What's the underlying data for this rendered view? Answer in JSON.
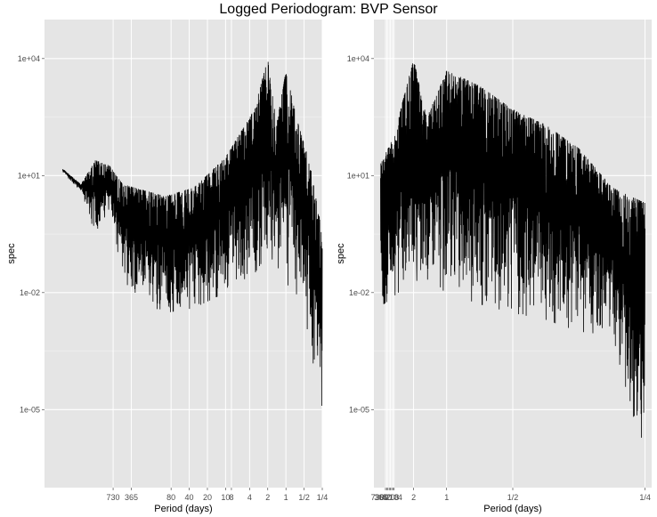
{
  "title": "Logged Periodogram: BVP Sensor",
  "colors": {
    "panel_bg": "#e5e5e5",
    "grid_major": "#ffffff",
    "line": "#000000",
    "tick_text": "#4d4d4d"
  },
  "chart_data": [
    {
      "type": "line",
      "xlabel": "Period (days)",
      "ylabel": "spec",
      "y_scale": "log10",
      "ylim": [
        1e-07,
        100000.0
      ],
      "x_scale": "log frequency (cycles per day)",
      "xlim_frequency": [
        0.0001,
        4
      ],
      "x_ticks": [
        {
          "label": "730",
          "frequency": 0.00137
        },
        {
          "label": "365",
          "frequency": 0.00274
        },
        {
          "label": "80",
          "frequency": 0.0125
        },
        {
          "label": "40",
          "frequency": 0.025
        },
        {
          "label": "20",
          "frequency": 0.05
        },
        {
          "label": "10",
          "frequency": 0.1
        },
        {
          "label": "8",
          "frequency": 0.125
        },
        {
          "label": "4",
          "frequency": 0.25
        },
        {
          "label": "2",
          "frequency": 0.5
        },
        {
          "label": "1",
          "frequency": 1
        },
        {
          "label": "1/2",
          "frequency": 2
        },
        {
          "label": "1/4",
          "frequency": 4
        }
      ],
      "y_ticks": [
        {
          "label": "1e-05",
          "value": 1e-05
        },
        {
          "label": "1e-02",
          "value": 0.01
        },
        {
          "label": "1e+01",
          "value": 10
        },
        {
          "label": "1e+04",
          "value": 10000
        }
      ],
      "envelope": [
        {
          "freq": 0.0002,
          "lo": 12,
          "hi": 15
        },
        {
          "freq": 0.0004,
          "lo": 4,
          "hi": 6
        },
        {
          "freq": 0.0007,
          "lo": 0.3,
          "hi": 25
        },
        {
          "freq": 0.0012,
          "lo": 1.5,
          "hi": 18
        },
        {
          "freq": 0.002,
          "lo": 0.02,
          "hi": 6
        },
        {
          "freq": 0.005,
          "lo": 0.005,
          "hi": 4
        },
        {
          "freq": 0.01,
          "lo": 0.003,
          "hi": 3
        },
        {
          "freq": 0.03,
          "lo": 0.004,
          "hi": 5
        },
        {
          "freq": 0.1,
          "lo": 0.01,
          "hi": 30
        },
        {
          "freq": 0.3,
          "lo": 0.03,
          "hi": 500
        },
        {
          "freq": 0.5,
          "lo": 0.1,
          "hi": 10000
        },
        {
          "freq": 0.7,
          "lo": 0.05,
          "hi": 200
        },
        {
          "freq": 1.0,
          "lo": 0.02,
          "hi": 5000
        },
        {
          "freq": 1.5,
          "lo": 0.005,
          "hi": 300
        },
        {
          "freq": 2.5,
          "lo": 0.0005,
          "hi": 20
        },
        {
          "freq": 3.5,
          "lo": 2e-05,
          "hi": 1
        },
        {
          "freq": 4.0,
          "lo": 5e-07,
          "hi": 0.5
        }
      ]
    },
    {
      "type": "line",
      "xlabel": "Period (days)",
      "ylabel": "spec",
      "y_scale": "log10",
      "ylim": [
        1e-07,
        100000.0
      ],
      "x_scale": "linear frequency (cycles per day)",
      "xlim_frequency": [
        -0.1,
        4.1
      ],
      "x_ticks": [
        {
          "label": "2",
          "frequency": 0.5
        },
        {
          "label": "1",
          "frequency": 1
        },
        {
          "label": "1/2",
          "frequency": 2
        },
        {
          "label": "1/4",
          "frequency": 4
        }
      ],
      "x_ticks_overlapping": [
        "730",
        "365",
        "80",
        "40",
        "20",
        "10",
        "8",
        "4"
      ],
      "y_ticks": [
        {
          "label": "1e-05",
          "value": 1e-05
        },
        {
          "label": "1e-02",
          "value": 0.01
        },
        {
          "label": "1e+01",
          "value": 10
        },
        {
          "label": "1e+04",
          "value": 10000
        }
      ],
      "envelope": [
        {
          "freq": 0.0,
          "lo": 0.01,
          "hi": 20
        },
        {
          "freq": 0.05,
          "lo": 0.005,
          "hi": 30
        },
        {
          "freq": 0.2,
          "lo": 0.008,
          "hi": 100
        },
        {
          "freq": 0.5,
          "lo": 0.02,
          "hi": 10000
        },
        {
          "freq": 0.7,
          "lo": 0.02,
          "hi": 300
        },
        {
          "freq": 1.0,
          "lo": 0.01,
          "hi": 5000
        },
        {
          "freq": 1.5,
          "lo": 0.005,
          "hi": 2000
        },
        {
          "freq": 2.0,
          "lo": 0.003,
          "hi": 500
        },
        {
          "freq": 2.5,
          "lo": 0.002,
          "hi": 200
        },
        {
          "freq": 3.0,
          "lo": 0.001,
          "hi": 50
        },
        {
          "freq": 3.5,
          "lo": 0.0008,
          "hi": 5
        },
        {
          "freq": 4.0,
          "lo": 5e-07,
          "hi": 2
        }
      ]
    }
  ]
}
